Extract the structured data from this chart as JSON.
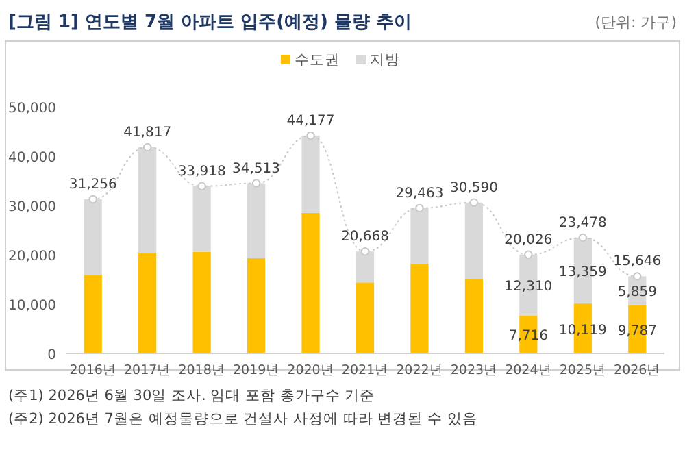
{
  "chart_data": {
    "type": "bar",
    "stacked": true,
    "title": "[그림 1] 연도별 7월 아파트 입주(예정) 물량 추이",
    "subtitle": "(단위: 가구)",
    "categories": [
      "2016년",
      "2017년",
      "2018년",
      "2019년",
      "2020년",
      "2021년",
      "2022년",
      "2023년",
      "2024년",
      "2025년",
      "2026년"
    ],
    "series": [
      {
        "name": "수도권",
        "color": "#ffc000",
        "values": [
          15900,
          20300,
          20600,
          19300,
          28500,
          14400,
          18200,
          15100,
          7716,
          10119,
          9787
        ],
        "value_labels": [
          null,
          null,
          null,
          null,
          null,
          null,
          null,
          null,
          "7,716",
          "10,119",
          "9,787"
        ]
      },
      {
        "name": "지방",
        "color": "#d9d9d9",
        "values": [
          15356,
          21517,
          13318,
          15213,
          15677,
          6268,
          11263,
          15490,
          12310,
          13359,
          5859
        ],
        "value_labels": [
          null,
          null,
          null,
          null,
          null,
          null,
          null,
          null,
          "12,310",
          "13,359",
          "5,859"
        ]
      },
      {
        "type": "line",
        "color": "#c8c8c8",
        "values": [
          31256,
          41817,
          33918,
          34513,
          44177,
          20668,
          29463,
          30590,
          20026,
          23478,
          15646
        ]
      }
    ],
    "totals": [
      "31,256",
      "41,817",
      "33,918",
      "34,513",
      "44,177",
      "20,668",
      "29,463",
      "30,590",
      "20,026",
      "23,478",
      "15,646"
    ],
    "marker": "circle",
    "line_style": "dotted",
    "legend": "top",
    "grid": false,
    "ylim": [
      0,
      50000
    ],
    "yticks": [
      {
        "value": 0,
        "label": "0"
      },
      {
        "value": 10000,
        "label": "10,000"
      },
      {
        "value": 20000,
        "label": "20,000"
      },
      {
        "value": 30000,
        "label": "30,000"
      },
      {
        "value": 40000,
        "label": "40,000"
      },
      {
        "value": 50000,
        "label": "50,000"
      }
    ],
    "annotations": [
      "(주1) 2026년 6월 30일 조사. 임대 포함 총가구수 기준",
      "(주2) 2026년 7월은 예정물량으로 건설사 사정에 따라 변경될 수 있음"
    ]
  }
}
